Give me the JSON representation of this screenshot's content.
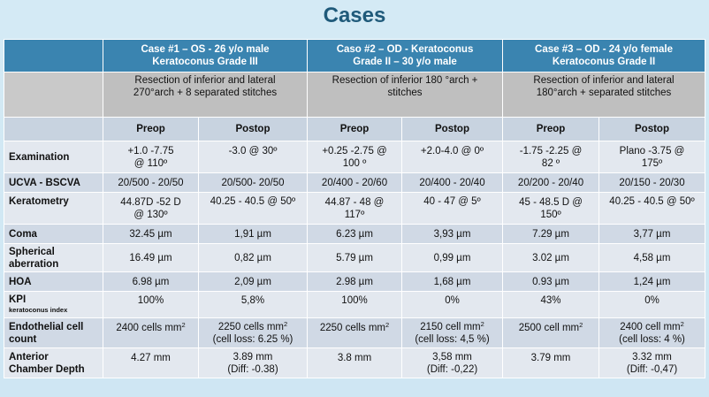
{
  "title": "Cases",
  "cases": [
    {
      "line1": "Case #1 – OS - 26 y/o male",
      "line2": "Keratoconus Grade III",
      "procedure_line1": "Resection of inferior and lateral",
      "procedure_line2": "270°arch + 8 separated stitches"
    },
    {
      "line1": "Caso #2 – OD - Keratoconus",
      "line2": "Grade II – 30 y/o male",
      "procedure_line1": "Resection of inferior 180 °arch +",
      "procedure_line2": "stitches"
    },
    {
      "line1": "Case #3 – OD - 24 y/o female",
      "line2": "Keratoconus Grade II",
      "procedure_line1": "Resection of inferior and lateral",
      "procedure_line2": "180°arch +  separated stitches"
    }
  ],
  "phases": {
    "preop": "Preop",
    "postop": "Postop"
  },
  "rows": {
    "examination": {
      "label": "Examination",
      "c1_pre": [
        "+1.0 -7.75",
        "@ 110º"
      ],
      "c1_post": [
        "-3.0 @ 30º",
        ""
      ],
      "c2_pre": [
        "+0.25 -2.75 @",
        "100 º"
      ],
      "c2_post": [
        "+2.0-4.0 @ 0º",
        ""
      ],
      "c3_pre": [
        "-1.75 -2.25 @",
        "82 º"
      ],
      "c3_post": [
        "Plano -3.75 @",
        "175º"
      ]
    },
    "ucva": {
      "label": "UCVA - BSCVA",
      "c1_pre": "20/500 - 20/50",
      "c1_post": "20/500- 20/50",
      "c2_pre": "20/400 - 20/60",
      "c2_post": "20/400 - 20/40",
      "c3_pre": "20/200 - 20/40",
      "c3_post": "20/150 - 20/30"
    },
    "keratometry": {
      "label": "Keratometry",
      "c1_pre": [
        "44.87D -52 D",
        "@ 130º"
      ],
      "c1_post": [
        "40.25 - 40.5 @ 50º",
        ""
      ],
      "c2_pre": [
        "44.87 - 48 @",
        "117º"
      ],
      "c2_post": [
        "40 - 47 @ 5º",
        ""
      ],
      "c3_pre": [
        "45 -  48.5 D @",
        "150º"
      ],
      "c3_post": [
        "40.25 - 40.5 @ 50º",
        ""
      ]
    },
    "coma": {
      "label": "Coma",
      "c1_pre": "32.45 µm",
      "c1_post": "1,91 µm",
      "c2_pre": "6.23 µm",
      "c2_post": "3,93 µm",
      "c3_pre": "7.29 µm",
      "c3_post": "3,77 µm"
    },
    "spherical": {
      "label_line1": "Spherical",
      "label_line2": "aberration",
      "c1_pre": "16.49 µm",
      "c1_post": "0,82 µm",
      "c2_pre": "5.79 µm",
      "c2_post": "0,99 µm",
      "c3_pre": "3.02 µm",
      "c3_post": "4,58 µm"
    },
    "hoa": {
      "label": "HOA",
      "c1_pre": "6.98 µm",
      "c1_post": "2,09 µm",
      "c2_pre": "2.98 µm",
      "c2_post": "1,68 µm",
      "c3_pre": "0.93 µm",
      "c3_post": "1,24 µm"
    },
    "kpi": {
      "label": "KPI",
      "sublabel": "keratoconus index",
      "c1_pre": "100%",
      "c1_post": "5,8%",
      "c2_pre": "100%",
      "c2_post": "0%",
      "c3_pre": "43%",
      "c3_post": "0%"
    },
    "endothelial": {
      "label_line1": "Endothelial cell",
      "label_line2": "count",
      "c1_pre": "2400 cells mm",
      "c1_post_line1": "2250 cells mm",
      "c1_post_line2": "(cell loss: 6.25 %)",
      "c2_pre": "2250 cells mm",
      "c2_post_line1": "2150 cell mm",
      "c2_post_line2": "(cell loss: 4,5 %)",
      "c3_pre": "2500 cell mm",
      "c3_post_line1": "2400 cell mm",
      "c3_post_line2": "(cell loss: 4 %)",
      "sup": "2"
    },
    "acd": {
      "label_line1": "Anterior",
      "label_line2": "Chamber Depth",
      "c1_pre": "4.27 mm",
      "c1_post_line1": "3.89 mm",
      "c1_post_line2": "(Diff: -0.38)",
      "c2_pre": "3.8 mm",
      "c2_post_line1": "3,58 mm",
      "c2_post_line2": "(Diff: -0,22)",
      "c3_pre": "3.79 mm",
      "c3_post_line1": "3.32 mm",
      "c3_post_line2": "(Diff: -0,47)"
    }
  }
}
